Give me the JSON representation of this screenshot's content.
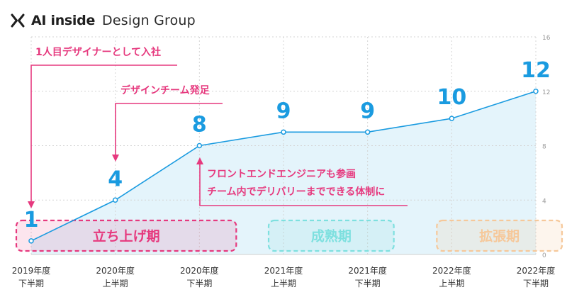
{
  "logo": {
    "brand": "AI inside",
    "group": "Design Group",
    "mark_icon": "x-mark-icon"
  },
  "colors": {
    "line": "#1a9be0",
    "area": "#e4f4fb",
    "value_label": "#1a9be0",
    "annotation": "#e6397e",
    "grid": "#d4d4d4",
    "axis_text": "#333333",
    "tick_text": "#9a9a9a",
    "phase_launch": "#e6397e",
    "phase_mature": "#7ee0df",
    "phase_expand": "#f6c89a"
  },
  "chart_data": {
    "type": "area",
    "title": "",
    "xlabel": "",
    "ylabel": "",
    "ylim": [
      0,
      16
    ],
    "yticks": [
      "0",
      "4",
      "8",
      "12",
      "16"
    ],
    "grid": true,
    "legend": "none",
    "categories": [
      {
        "year": "2019年度",
        "half": "下半期"
      },
      {
        "year": "2020年度",
        "half": "上半期"
      },
      {
        "year": "2020年度",
        "half": "下半期"
      },
      {
        "year": "2021年度",
        "half": "上半期"
      },
      {
        "year": "2021年度",
        "half": "下半期"
      },
      {
        "year": "2022年度",
        "half": "上半期"
      },
      {
        "year": "2022年度",
        "half": "下半期"
      }
    ],
    "series": [
      {
        "values": [
          1,
          4,
          8,
          9,
          9,
          10,
          12
        ]
      }
    ],
    "data_labels": [
      "1",
      "4",
      "8",
      "9",
      "9",
      "10",
      "12"
    ],
    "phases": [
      {
        "label": "立ち上げ期",
        "from_index": 0,
        "to_index": 2
      },
      {
        "label": "成熟期",
        "from_index": 3,
        "to_index": 4
      },
      {
        "label": "拡張期",
        "from_index": 5,
        "to_index": 6
      }
    ],
    "annotations": [
      {
        "text": "1人目デザイナーとして入社",
        "target_index": 0
      },
      {
        "text": "デザインチーム発足",
        "target_index": 1
      },
      {
        "text": "フロントエンドエンジニアも参画",
        "target_index": 2
      },
      {
        "text": "チーム内でデリバリーまでできる体制に",
        "target_index": 2
      }
    ]
  }
}
